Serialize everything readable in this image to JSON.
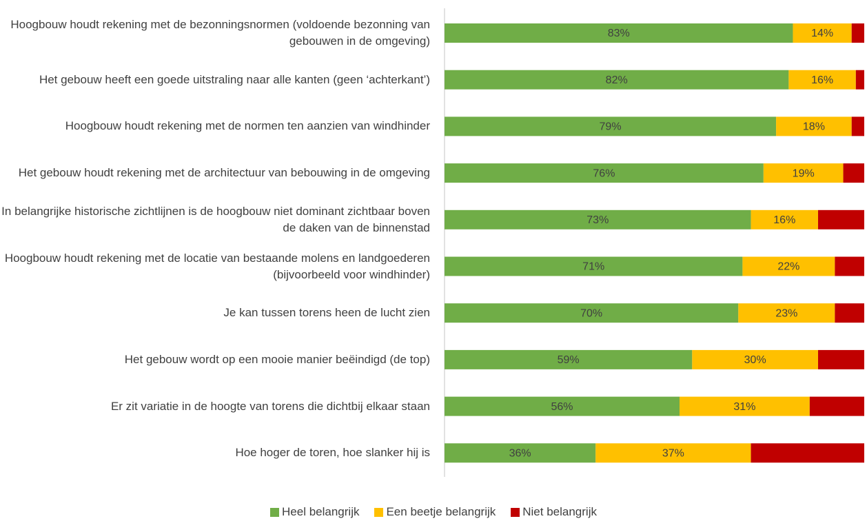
{
  "chart_data": {
    "type": "bar",
    "orientation": "horizontal",
    "stacked": true,
    "categories": [
      "Hoogbouw houdt rekening met de bezonningsnormen (voldoende bezonning van gebouwen in de omgeving)",
      "Het gebouw heeft een goede uitstraling naar alle kanten (geen ‘achterkant’)",
      "Hoogbouw houdt rekening met de normen ten aanzien van windhinder",
      "Het gebouw houdt rekening met de architectuur van bebouwing in de omgeving",
      "In belangrijke historische zichtlijnen is de hoogbouw niet dominant zichtbaar boven de daken van de binnenstad",
      "Hoogbouw houdt rekening met de locatie van bestaande molens en landgoederen (bijvoorbeeld voor windhinder)",
      "Je kan tussen torens heen de lucht zien",
      "Het gebouw wordt op een mooie manier beëindigd (de top)",
      "Er zit variatie in de hoogte van torens die dichtbij elkaar staan",
      "Hoe hoger de toren, hoe slanker hij is"
    ],
    "series": [
      {
        "name": "Heel belangrijk",
        "color": "#70ad47",
        "values": [
          83,
          82,
          79,
          76,
          73,
          71,
          70,
          59,
          56,
          36
        ],
        "value_labels": [
          "83%",
          "82%",
          "79%",
          "76%",
          "73%",
          "71%",
          "70%",
          "59%",
          "56%",
          "36%"
        ]
      },
      {
        "name": "Een beetje belangrijk",
        "color": "#ffc000",
        "values": [
          14,
          16,
          18,
          19,
          16,
          22,
          23,
          30,
          31,
          37
        ],
        "value_labels": [
          "14%",
          "16%",
          "18%",
          "19%",
          "16%",
          "22%",
          "23%",
          "30%",
          "31%",
          "37%"
        ]
      },
      {
        "name": "Niet belangrijk",
        "color": "#c00000",
        "values": [
          3,
          2,
          3,
          5,
          11,
          7,
          7,
          11,
          13,
          27
        ]
      }
    ]
  }
}
